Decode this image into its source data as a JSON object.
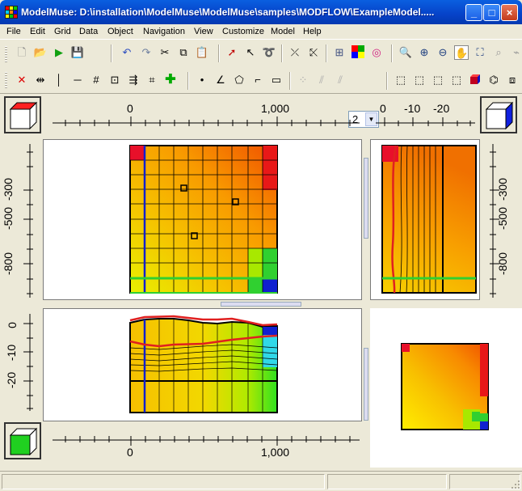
{
  "window": {
    "title": "ModelMuse: D:\\installation\\ModelMuse\\ModelMuse\\samples\\MODFLOW\\ExampleModel.....",
    "minimize_glyph": "_",
    "maximize_glyph": "□",
    "close_glyph": "×"
  },
  "menu": {
    "items": [
      "File",
      "Edit",
      "Grid",
      "Data",
      "Object",
      "Navigation",
      "View",
      "Customize",
      "Model",
      "Help"
    ]
  },
  "toolbar": {
    "layer_value": "2",
    "icons": [
      "new-file-icon",
      "open-icon",
      "run-icon",
      "save-icon",
      "undo-icon",
      "redo-icon",
      "cut-icon",
      "copy-icon",
      "paste-icon",
      "select-arrow-icon",
      "edit-vertex-icon",
      "lasso-icon",
      "delete-vertex-icon",
      "add-vertex-icon",
      "show-hide-objects-icon",
      "color-grid-icon",
      "contour-icon",
      "zoom-icon",
      "zoom-in-icon",
      "zoom-out-icon",
      "pan-icon",
      "zoom-extent-icon",
      "measure-icon"
    ]
  },
  "rulers": {
    "top": [
      "0",
      "1,000"
    ],
    "right_top": [
      "0",
      "-10",
      "-20"
    ],
    "left": [
      "-300",
      "-500",
      "-800"
    ],
    "right": [
      "-300",
      "-500",
      "-800"
    ],
    "front_left": [
      "0",
      "-10",
      "-20"
    ],
    "bottom": [
      "0",
      "1,000"
    ]
  },
  "colors": {
    "accent": "#0a5fe0",
    "grid_line": "#000000",
    "boundary": "#e02020",
    "green_line": "#30d030",
    "blue_col": "#1020d0"
  }
}
